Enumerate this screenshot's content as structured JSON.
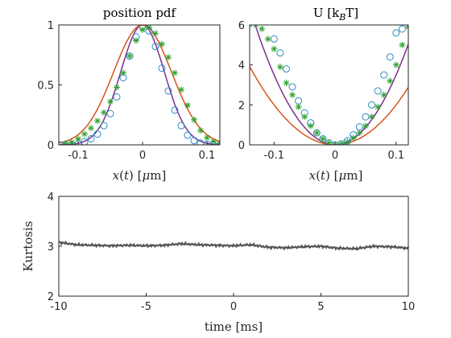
{
  "chart_data": [
    {
      "type": "scatter",
      "title": "position pdf",
      "xlabel": "x(t) [μm]",
      "ylabel": "",
      "xlim": [
        -0.13,
        0.12
      ],
      "ylim": [
        0,
        1
      ],
      "xticks": [
        -0.1,
        0,
        0.1
      ],
      "xtick_labels": [
        "-0.1",
        "0",
        "0.1"
      ],
      "yticks": [
        0,
        0.5,
        1
      ],
      "ytick_labels": [
        "0",
        "0.5",
        "1"
      ],
      "grid": false,
      "colors": {
        "circles": "#2b8cc4",
        "stars": "#2ca02c",
        "fit_purple": "#7e2f8e",
        "fit_orange": "#d95319"
      },
      "series": [
        {
          "marker": "circle",
          "x": [
            -0.128,
            -0.12,
            -0.11,
            -0.1,
            -0.09,
            -0.08,
            -0.07,
            -0.06,
            -0.05,
            -0.04,
            -0.03,
            -0.02,
            -0.01,
            0,
            0.01,
            0.02,
            0.03,
            0.04,
            0.05,
            0.06,
            0.07,
            0.08,
            0.09,
            0.1,
            0.11,
            0.12
          ],
          "y": [
            0.0,
            0.0,
            0.005,
            0.01,
            0.025,
            0.05,
            0.09,
            0.16,
            0.26,
            0.4,
            0.56,
            0.74,
            0.9,
            0.99,
            0.95,
            0.82,
            0.64,
            0.45,
            0.29,
            0.16,
            0.08,
            0.035,
            0.015,
            0.005,
            0.0,
            0.0
          ]
        },
        {
          "marker": "star",
          "x": [
            -0.12,
            -0.11,
            -0.1,
            -0.09,
            -0.08,
            -0.07,
            -0.06,
            -0.05,
            -0.04,
            -0.03,
            -0.02,
            -0.01,
            0,
            0.01,
            0.02,
            0.03,
            0.04,
            0.05,
            0.06,
            0.07,
            0.08,
            0.09,
            0.1,
            0.11,
            0.12
          ],
          "y": [
            0.01,
            0.02,
            0.05,
            0.09,
            0.14,
            0.2,
            0.27,
            0.36,
            0.48,
            0.6,
            0.74,
            0.87,
            0.96,
            0.98,
            0.93,
            0.84,
            0.73,
            0.6,
            0.46,
            0.33,
            0.21,
            0.12,
            0.06,
            0.03,
            0.01
          ]
        },
        {
          "marker": "line",
          "color": "purple",
          "sigma": 0.034
        },
        {
          "marker": "line",
          "color": "orange",
          "sigma": 0.045
        }
      ]
    },
    {
      "type": "scatter",
      "title": "U [k_BT]",
      "xlabel": "x(t) [μm]",
      "ylabel": "",
      "xlim": [
        -0.14,
        0.12
      ],
      "ylim": [
        0,
        6
      ],
      "xticks": [
        -0.1,
        0,
        0.1
      ],
      "xtick_labels": [
        "-0.1",
        "0",
        "0.1"
      ],
      "yticks": [
        0,
        2,
        4,
        6
      ],
      "ytick_labels": [
        "0",
        "2",
        "4",
        "6"
      ],
      "grid": false,
      "series": [
        {
          "marker": "circle",
          "x": [
            -0.1,
            -0.09,
            -0.08,
            -0.07,
            -0.06,
            -0.05,
            -0.04,
            -0.03,
            -0.02,
            -0.01,
            0,
            0.01,
            0.02,
            0.03,
            0.04,
            0.05,
            0.06,
            0.07,
            0.08,
            0.09,
            0.1,
            0.11
          ],
          "y": [
            5.3,
            4.6,
            3.8,
            2.9,
            2.2,
            1.6,
            1.1,
            0.6,
            0.3,
            0.1,
            0.0,
            0.05,
            0.2,
            0.5,
            0.9,
            1.4,
            2.0,
            2.7,
            3.5,
            4.4,
            5.6,
            5.8
          ]
        },
        {
          "marker": "star",
          "x": [
            -0.14,
            -0.13,
            -0.12,
            -0.11,
            -0.1,
            -0.09,
            -0.08,
            -0.07,
            -0.06,
            -0.05,
            -0.04,
            -0.03,
            -0.02,
            -0.01,
            0,
            0.01,
            0.02,
            0.03,
            0.04,
            0.05,
            0.06,
            0.07,
            0.08,
            0.09,
            0.1,
            0.11,
            0.12
          ],
          "y": [
            6.0,
            6.0,
            5.8,
            5.3,
            4.8,
            3.9,
            3.1,
            2.5,
            1.9,
            1.4,
            0.95,
            0.6,
            0.3,
            0.1,
            0.0,
            0.05,
            0.15,
            0.35,
            0.6,
            0.95,
            1.4,
            1.9,
            2.5,
            3.2,
            4.0,
            5.0,
            5.9
          ]
        },
        {
          "marker": "line",
          "color": "purple",
          "k": 700
        },
        {
          "marker": "line",
          "color": "orange",
          "k": 400
        }
      ]
    },
    {
      "type": "line",
      "title": "",
      "xlabel": "time [ms]",
      "ylabel": "Kurtosis",
      "xlim": [
        -10,
        10
      ],
      "ylim": [
        2,
        4
      ],
      "xticks": [
        -10,
        -5,
        0,
        5,
        10
      ],
      "xtick_labels": [
        "-10",
        "-5",
        "0",
        "5",
        "10"
      ],
      "yticks": [
        2,
        3,
        4
      ],
      "ytick_labels": [
        "2",
        "3",
        "4"
      ],
      "grid": false,
      "color": "#555555",
      "x": [
        -10,
        -9,
        -8,
        -7,
        -6,
        -5,
        -4,
        -3,
        -2,
        -1,
        0,
        1,
        2,
        3,
        4,
        5,
        6,
        7,
        8,
        9,
        10
      ],
      "y": [
        3.08,
        3.03,
        3.02,
        3.01,
        3.02,
        3.01,
        3.02,
        3.05,
        3.03,
        3.02,
        3.01,
        3.03,
        2.98,
        2.97,
        2.99,
        3.0,
        2.96,
        2.95,
        3.0,
        2.99,
        2.96
      ]
    }
  ]
}
